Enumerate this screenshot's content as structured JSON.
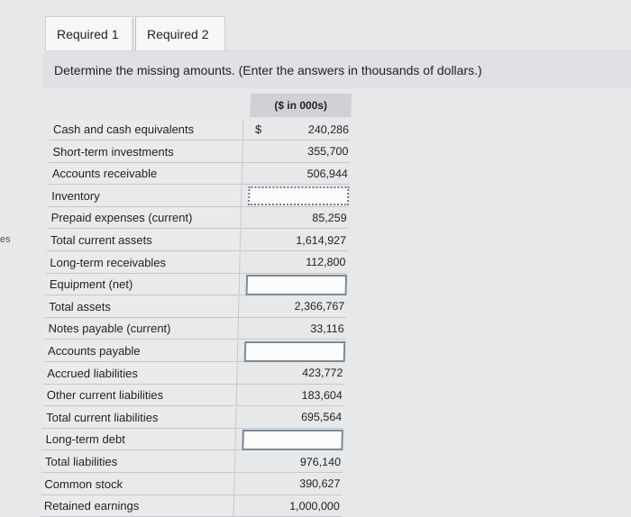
{
  "side_text": "es",
  "tabs": [
    {
      "label": "Required 1"
    },
    {
      "label": "Required 2"
    }
  ],
  "instruction": "Determine the missing amounts. (Enter the answers in thousands of dollars.)",
  "table": {
    "header": "($ in 000s)",
    "currency_symbol": "$",
    "rows": [
      {
        "label": "Cash and cash equivalents",
        "value": "240,286"
      },
      {
        "label": "Short-term investments",
        "value": "355,700"
      },
      {
        "label": "Accounts receivable",
        "value": "506,944"
      },
      {
        "label": "Inventory",
        "value": ""
      },
      {
        "label": "Prepaid expenses (current)",
        "value": "85,259"
      },
      {
        "label": "Total current assets",
        "value": "1,614,927"
      },
      {
        "label": "Long-term receivables",
        "value": "112,800"
      },
      {
        "label": "Equipment (net)",
        "value": ""
      },
      {
        "label": "Total assets",
        "value": "2,366,767"
      },
      {
        "label": "Notes payable (current)",
        "value": "33,116"
      },
      {
        "label": "Accounts payable",
        "value": ""
      },
      {
        "label": "Accrued liabilities",
        "value": "423,772"
      },
      {
        "label": "Other current liabilities",
        "value": "183,604"
      },
      {
        "label": "Total current liabilities",
        "value": "695,564"
      },
      {
        "label": "Long-term debt",
        "value": ""
      },
      {
        "label": "Total liabilities",
        "value": "976,140"
      },
      {
        "label": "Common stock",
        "value": "390,627"
      },
      {
        "label": "Retained earnings",
        "value": "1,000,000"
      }
    ]
  }
}
